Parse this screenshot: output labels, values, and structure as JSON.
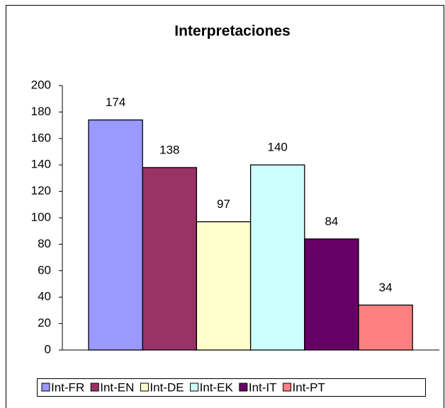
{
  "chart_data": {
    "type": "bar",
    "title": "Interpretaciones",
    "categories": [
      null
    ],
    "series": [
      {
        "name": "Int-FR",
        "color": "#9999ff",
        "values": [
          174
        ]
      },
      {
        "name": "Int-EN",
        "color": "#993366",
        "values": [
          138
        ]
      },
      {
        "name": "Int-DE",
        "color": "#ffffcc",
        "values": [
          97
        ]
      },
      {
        "name": "Int-EK",
        "color": "#ccffff",
        "values": [
          140
        ]
      },
      {
        "name": "Int-IT",
        "color": "#660066",
        "values": [
          84
        ]
      },
      {
        "name": "Int-PT",
        "color": "#ff8080",
        "values": [
          34
        ]
      }
    ],
    "ylim": [
      0,
      200
    ],
    "yticks": [
      0,
      20,
      40,
      60,
      80,
      100,
      120,
      140,
      160,
      180,
      200
    ],
    "grid": false,
    "legend": "bottom"
  }
}
